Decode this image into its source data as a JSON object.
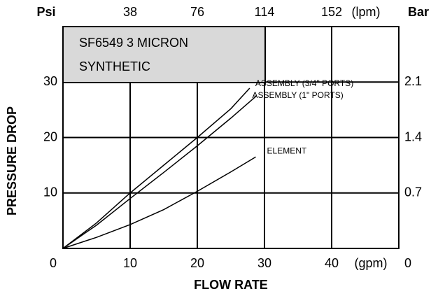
{
  "chart_data": {
    "type": "line",
    "annotation": [
      "SF6549  3 MICRON",
      "SYNTHETIC"
    ],
    "xlabel": "FLOW RATE",
    "ylabel": "PRESSURE DROP",
    "x_unit": "(gpm)",
    "x2_unit": "(lpm)",
    "y_unit": "Psi",
    "y2_unit": "Bar",
    "xlim": [
      0,
      50
    ],
    "xticks": [
      0,
      10,
      20,
      30,
      40
    ],
    "x2lim": [
      0,
      190
    ],
    "x2ticks": [
      38,
      76,
      114,
      152
    ],
    "ylim": [
      0,
      40
    ],
    "yticks": [
      10,
      20,
      30
    ],
    "y2lim": [
      0,
      2.8
    ],
    "y2ticks": [
      0,
      0.7,
      1.4,
      2.1
    ],
    "grid": true,
    "series": [
      {
        "name": "ASSEMBLY (3/4\" PORTS)",
        "color": "#000000",
        "x": [
          0,
          5,
          10,
          15,
          20,
          25,
          27.8
        ],
        "values": [
          0,
          4.6,
          10,
          15,
          20,
          25.2,
          28.9
        ]
      },
      {
        "name": "ASSEMBLY (1\" PORTS)",
        "color": "#000000",
        "x": [
          0,
          5,
          10,
          15,
          20,
          25,
          28.8
        ],
        "values": [
          0,
          4.2,
          9,
          13.7,
          18.5,
          23.5,
          27.5
        ]
      },
      {
        "name": "ELEMENT",
        "color": "#000000",
        "x": [
          0,
          5,
          10,
          15,
          20,
          25,
          28.7
        ],
        "values": [
          0,
          2,
          4.3,
          7,
          10.3,
          13.8,
          16.5
        ]
      }
    ]
  }
}
